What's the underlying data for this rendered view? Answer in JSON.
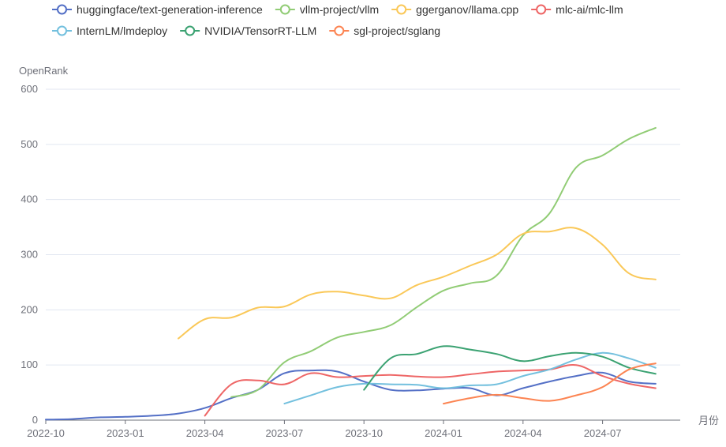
{
  "chart_data": {
    "type": "line",
    "ylabel": "OpenRank",
    "xlabel": "月份",
    "ylim": [
      0,
      600
    ],
    "yticks": [
      "0",
      "100",
      "200",
      "300",
      "400",
      "500",
      "600"
    ],
    "xticks": [
      "2022-10",
      "2023-01",
      "2023-04",
      "2023-07",
      "2023-10",
      "2024-01",
      "2024-04",
      "2024-07"
    ],
    "months": [
      "2022-10",
      "2022-11",
      "2022-12",
      "2023-01",
      "2023-02",
      "2023-03",
      "2023-04",
      "2023-05",
      "2023-06",
      "2023-07",
      "2023-08",
      "2023-09",
      "2023-10",
      "2023-11",
      "2023-12",
      "2024-01",
      "2024-02",
      "2024-03",
      "2024-04",
      "2024-05",
      "2024-06",
      "2024-07",
      "2024-08",
      "2024-09"
    ],
    "legend_position": "top",
    "grid": true,
    "series": [
      {
        "name": "huggingface/text-generation-inference",
        "color": "#5470c6",
        "values": [
          1,
          2,
          5,
          6,
          8,
          12,
          22,
          40,
          55,
          85,
          90,
          88,
          70,
          55,
          54,
          57,
          58,
          45,
          58,
          70,
          80,
          86,
          70,
          66
        ]
      },
      {
        "name": "vllm-project/vllm",
        "color": "#91cc75",
        "values": [
          null,
          null,
          null,
          null,
          null,
          null,
          null,
          42,
          55,
          105,
          125,
          150,
          160,
          172,
          205,
          235,
          248,
          262,
          335,
          375,
          458,
          480,
          510,
          530
        ]
      },
      {
        "name": "ggerganov/llama.cpp",
        "color": "#fac858",
        "values": [
          null,
          null,
          null,
          null,
          null,
          148,
          183,
          186,
          204,
          206,
          228,
          233,
          226,
          221,
          245,
          260,
          280,
          300,
          338,
          342,
          348,
          318,
          266,
          255
        ]
      },
      {
        "name": "mlc-ai/mlc-llm",
        "color": "#ee6666",
        "values": [
          null,
          null,
          null,
          null,
          null,
          null,
          8,
          65,
          72,
          65,
          85,
          78,
          80,
          82,
          79,
          78,
          83,
          88,
          90,
          92,
          100,
          80,
          66,
          58
        ]
      },
      {
        "name": "InternLM/lmdeploy",
        "color": "#73c0de",
        "values": [
          null,
          null,
          null,
          null,
          null,
          null,
          null,
          null,
          null,
          30,
          45,
          60,
          66,
          65,
          64,
          58,
          63,
          65,
          80,
          92,
          110,
          122,
          112,
          95
        ]
      },
      {
        "name": "NVIDIA/TensorRT-LLM",
        "color": "#3ba272",
        "values": [
          null,
          null,
          null,
          null,
          null,
          null,
          null,
          null,
          null,
          null,
          null,
          null,
          55,
          112,
          120,
          134,
          128,
          120,
          107,
          116,
          122,
          115,
          95,
          84
        ]
      },
      {
        "name": "sgl-project/sglang",
        "color": "#fc8452",
        "values": [
          null,
          null,
          null,
          null,
          null,
          null,
          null,
          null,
          null,
          null,
          null,
          null,
          null,
          null,
          null,
          30,
          40,
          46,
          40,
          35,
          45,
          60,
          92,
          103
        ]
      }
    ]
  }
}
